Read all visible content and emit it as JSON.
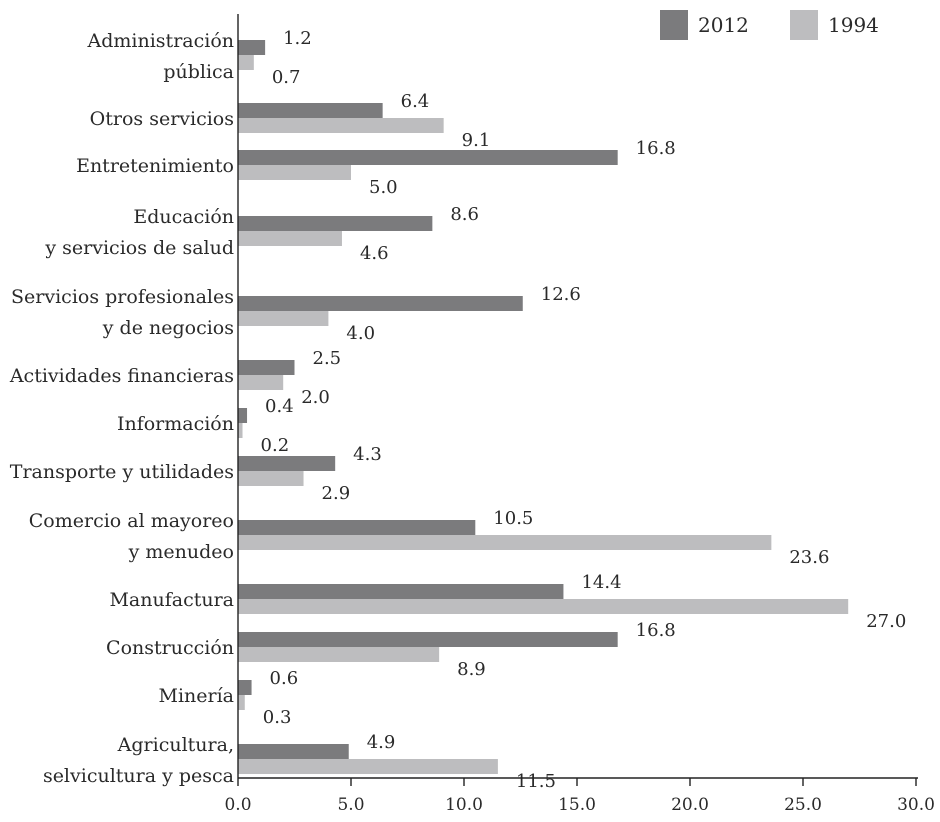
{
  "chart_data": {
    "type": "bar",
    "orientation": "horizontal",
    "title": "",
    "xlabel": "",
    "ylabel": "",
    "xlim": [
      0,
      30
    ],
    "xticks": [
      "0.0",
      "5.0",
      "10.0",
      "15.0",
      "20.0",
      "25.0",
      "30.0"
    ],
    "grid": false,
    "legend_position": "top-right",
    "categories": [
      [
        "Administración",
        "pública"
      ],
      [
        "Otros servicios"
      ],
      [
        "Entretenimiento"
      ],
      [
        "Educación",
        "y servicios de salud"
      ],
      [
        "Servicios profesionales",
        "y de negocios"
      ],
      [
        "Actividades financieras"
      ],
      [
        "Información"
      ],
      [
        "Transporte y utilidades"
      ],
      [
        "Comercio al mayoreo",
        "y menudeo"
      ],
      [
        "Manufactura"
      ],
      [
        "Construcción"
      ],
      [
        "Minería"
      ],
      [
        "Agricultura,",
        "selvicultura y pesca"
      ]
    ],
    "series": [
      {
        "name": "2012",
        "color": "#7b7b7d",
        "values": [
          1.2,
          6.4,
          16.8,
          8.6,
          12.6,
          2.5,
          0.4,
          4.3,
          10.5,
          14.4,
          16.8,
          0.6,
          4.9
        ],
        "labels": [
          "1.2",
          "6.4",
          "16.8",
          "8.6",
          "12.6",
          "2.5",
          "0.4",
          "4.3",
          "10.5",
          "14.4",
          "16.8",
          "0.6",
          "4.9"
        ]
      },
      {
        "name": "1994",
        "color": "#bdbdbf",
        "values": [
          0.7,
          9.1,
          5.0,
          4.6,
          4.0,
          2.0,
          0.2,
          2.9,
          23.6,
          27.0,
          8.9,
          0.3,
          11.5
        ],
        "labels": [
          "0.7",
          "9.1",
          "5.0",
          "4.6",
          "4.0",
          "2.0",
          "0.2",
          "2.9",
          "23.6",
          "27.0",
          "8.9",
          "0.3",
          "11.5"
        ]
      }
    ]
  }
}
